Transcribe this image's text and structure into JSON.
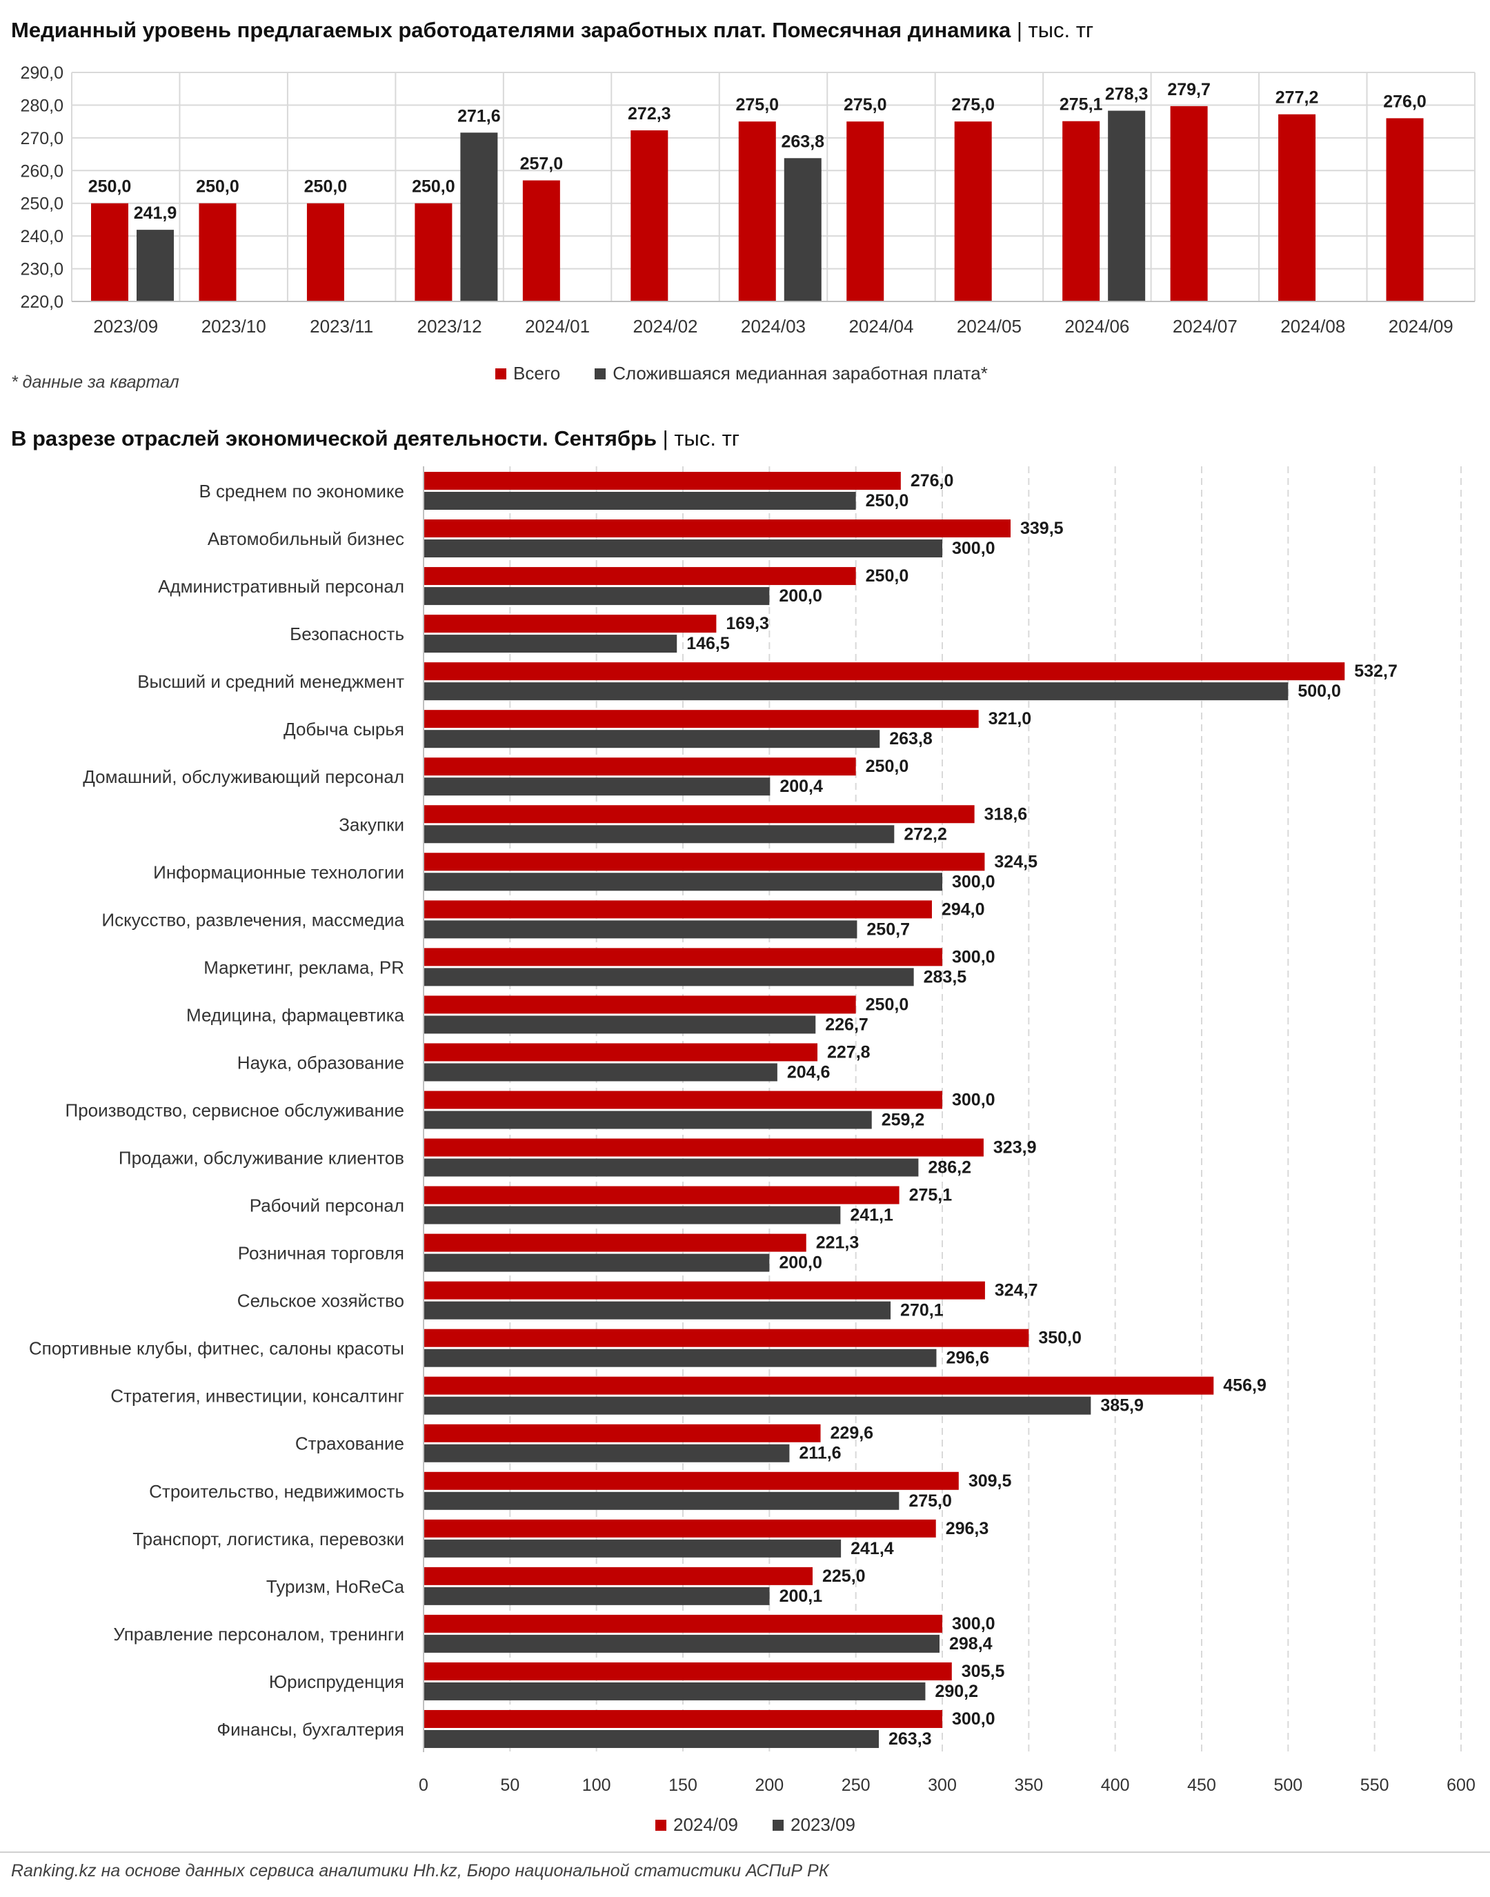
{
  "titles": {
    "top_main": "Медианный уровень предлагаемых работодателями заработных плат. Помесячная динамика",
    "top_unit": "тыс. тг",
    "bottom_main": "В разрезе отраслей экономической деятельности. Сентябрь",
    "bottom_unit": "тыс. тг",
    "separator": "|"
  },
  "note": "* данные за квартал",
  "source": "Ranking.kz на основе данных сервиса аналитики Hh.kz, Бюро национальной статистики АСПиР РК",
  "colors": {
    "red": "#c00000",
    "dark": "#404040",
    "grid": "#d9d9d9"
  },
  "chart_data": [
    {
      "type": "bar",
      "categories": [
        "2023/09",
        "2023/10",
        "2023/11",
        "2023/12",
        "2024/01",
        "2024/02",
        "2024/03",
        "2024/04",
        "2024/05",
        "2024/06",
        "2024/07",
        "2024/08",
        "2024/09"
      ],
      "series": [
        {
          "name": "Всего",
          "color": "#c00000",
          "values": [
            250.0,
            250.0,
            250.0,
            250.0,
            257.0,
            272.3,
            275.0,
            275.0,
            275.0,
            275.1,
            279.7,
            277.2,
            276.0
          ],
          "labels": [
            "250,0",
            "250,0",
            "250,0",
            "250,0",
            "257,0",
            "272,3",
            "275,0",
            "275,0",
            "275,0",
            "275,1",
            "279,7",
            "277,2",
            "276,0"
          ]
        },
        {
          "name": "Сложившаяся медианная заработная плата*",
          "color": "#404040",
          "values": [
            241.9,
            null,
            null,
            271.6,
            null,
            null,
            263.8,
            null,
            null,
            278.3,
            null,
            null,
            null
          ],
          "labels": [
            "241,9",
            null,
            null,
            "271,6",
            null,
            null,
            "263,8",
            null,
            null,
            "278,3",
            null,
            null,
            null
          ]
        }
      ],
      "ylim": [
        220,
        290
      ],
      "yticks": [
        "220,0",
        "230,0",
        "240,0",
        "250,0",
        "260,0",
        "270,0",
        "280,0",
        "290,0"
      ],
      "legend": "bottom"
    },
    {
      "type": "bar",
      "orientation": "horizontal",
      "categories": [
        "В среднем по экономике",
        "Автомобильный бизнес",
        "Административный персонал",
        "Безопасность",
        "Высший и средний менеджмент",
        "Добыча сырья",
        "Домашний, обслуживающий персонал",
        "Закупки",
        "Информационные технологии",
        "Искусство, развлечения, массмедиа",
        "Маркетинг, реклама, PR",
        "Медицина, фармацевтика",
        "Наука, образование",
        "Производство, сервисное обслуживание",
        "Продажи, обслуживание клиентов",
        "Рабочий персонал",
        "Розничная торговля",
        "Сельское хозяйство",
        "Спортивные клубы, фитнес, салоны красоты",
        "Стратегия, инвестиции, консалтинг",
        "Страхование",
        "Строительство, недвижимость",
        "Транспорт, логистика, перевозки",
        "Туризм, HoReCa",
        "Управление персоналом, тренинги",
        "Юриспруденция",
        "Финансы, бухгалтерия"
      ],
      "series": [
        {
          "name": "2024/09",
          "color": "#c00000",
          "values": [
            276.0,
            339.5,
            250.0,
            169.3,
            532.7,
            321.0,
            250.0,
            318.6,
            324.5,
            294.0,
            300.0,
            250.0,
            227.8,
            300.0,
            323.9,
            275.1,
            221.3,
            324.7,
            350.0,
            456.9,
            229.6,
            309.5,
            296.3,
            225.0,
            300.0,
            305.5,
            300.0
          ],
          "labels": [
            "276,0",
            "339,5",
            "250,0",
            "169,3",
            "532,7",
            "321,0",
            "250,0",
            "318,6",
            "324,5",
            "294,0",
            "300,0",
            "250,0",
            "227,8",
            "300,0",
            "323,9",
            "275,1",
            "221,3",
            "324,7",
            "350,0",
            "456,9",
            "229,6",
            "309,5",
            "296,3",
            "225,0",
            "300,0",
            "305,5",
            "300,0"
          ]
        },
        {
          "name": "2023/09",
          "color": "#404040",
          "values": [
            250.0,
            300.0,
            200.0,
            146.5,
            500.0,
            263.8,
            200.4,
            272.2,
            300.0,
            250.7,
            283.5,
            226.7,
            204.6,
            259.2,
            286.2,
            241.1,
            200.0,
            270.1,
            296.6,
            385.9,
            211.6,
            275.0,
            241.4,
            200.1,
            298.4,
            290.2,
            263.3
          ],
          "labels": [
            "250,0",
            "300,0",
            "200,0",
            "146,5",
            "500,0",
            "263,8",
            "200,4",
            "272,2",
            "300,0",
            "250,7",
            "283,5",
            "226,7",
            "204,6",
            "259,2",
            "286,2",
            "241,1",
            "200,0",
            "270,1",
            "296,6",
            "385,9",
            "211,6",
            "275,0",
            "241,4",
            "200,1",
            "298,4",
            "290,2",
            "263,3"
          ]
        }
      ],
      "xlim": [
        0,
        600
      ],
      "xticks": [
        "0",
        "50",
        "100",
        "150",
        "200",
        "250",
        "300",
        "350",
        "400",
        "450",
        "500",
        "550",
        "600"
      ],
      "legend": "bottom"
    }
  ]
}
